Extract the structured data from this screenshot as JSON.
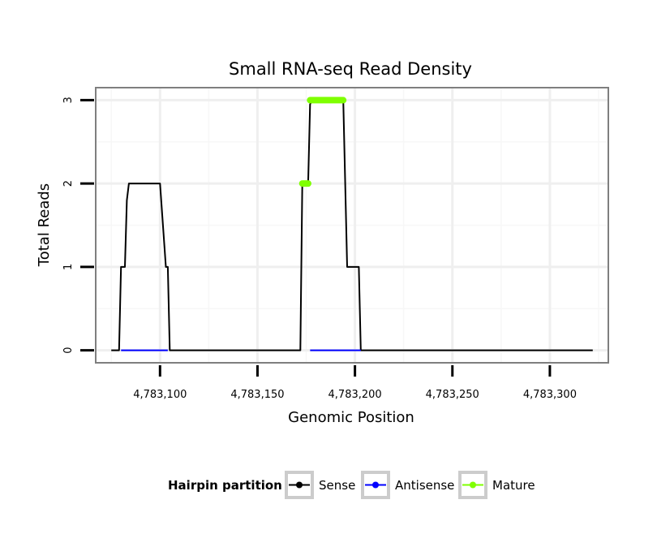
{
  "chart_data": {
    "type": "line",
    "title": "Small RNA-seq Read Density",
    "xlabel": "Genomic Position",
    "ylabel": "Total Reads",
    "xlim": [
      4783067,
      4783330
    ],
    "ylim": [
      -0.15,
      3.15
    ],
    "x_ticks": [
      4783100,
      4783150,
      4783200,
      4783250,
      4783300
    ],
    "x_tick_labels": [
      "4,783,100",
      "4,783,150",
      "4,783,200",
      "4,783,250",
      "4,783,300"
    ],
    "y_ticks": [
      0,
      1,
      2,
      3
    ],
    "y_tick_labels": [
      "0",
      "1",
      "2",
      "3"
    ],
    "grid": true,
    "legend": {
      "title": "Hairpin partition",
      "placement": "bottom",
      "entries": [
        "Sense",
        "Antisense",
        "Mature"
      ]
    },
    "series": [
      {
        "name": "Sense",
        "color": "#000000",
        "x": [
          4783075,
          4783079,
          4783080,
          4783082,
          4783083,
          4783084,
          4783099,
          4783100,
          4783103,
          4783104,
          4783105,
          4783121,
          4783137,
          4783153,
          4783169,
          4783172,
          4783173,
          4783176,
          4783177,
          4783178,
          4783193,
          4783194,
          4783196,
          4783201,
          4783202,
          4783203,
          4783224,
          4783260,
          4783295,
          4783322
        ],
        "values": [
          0,
          0,
          1,
          1,
          1.8,
          2,
          2,
          2,
          1,
          1,
          0,
          0,
          0,
          0,
          0,
          0,
          2,
          2,
          2.95,
          3,
          3,
          3,
          1,
          1,
          1,
          0,
          0,
          0,
          0,
          0
        ]
      },
      {
        "name": "Antisense",
        "color": "#0000ff",
        "x": [
          4783080,
          4783104,
          4783177,
          4783203
        ],
        "values": [
          0,
          0,
          0,
          0
        ]
      },
      {
        "name": "Mature",
        "color": "#7fff00",
        "x": [
          4783173,
          4783176,
          4783177,
          4783194
        ],
        "values": [
          2,
          2,
          3,
          3
        ]
      }
    ]
  }
}
